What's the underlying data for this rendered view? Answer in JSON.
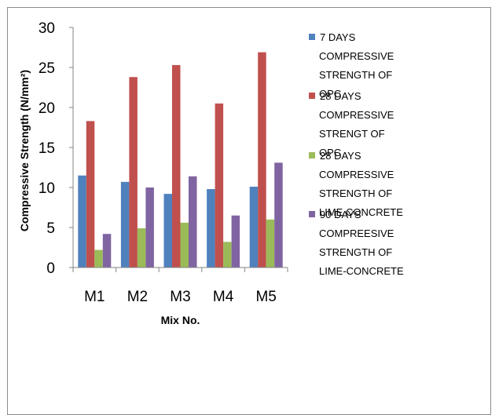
{
  "chart_data": {
    "type": "bar",
    "title": "",
    "xlabel": "Mix No.",
    "ylabel": "Compressive Strength (N/mm²)",
    "ylim": [
      0,
      30
    ],
    "yticks": [
      "0",
      "5",
      "10",
      "15",
      "20",
      "25",
      "30"
    ],
    "categories": [
      "M1",
      "M2",
      "M3",
      "M4",
      "M5"
    ],
    "grid": false,
    "legend_position": "right",
    "series": [
      {
        "name": "7 DAYS COMPRESSIVE STRENGTH OF OPC",
        "legend_lines": [
          "7 DAYS",
          "COMPRESSIVE",
          "STRENGTH OF",
          "OPC"
        ],
        "color": "#4f81bd",
        "values": [
          11.5,
          10.7,
          9.2,
          9.8,
          10.1
        ]
      },
      {
        "name": "28 DAYS COMPRESSIVE STRENGT OF OPC",
        "legend_lines": [
          "28 DAYS",
          "COMPRESSIVE",
          "STRENGT OF",
          "OPC"
        ],
        "color": "#c0504d",
        "values": [
          18.3,
          23.8,
          25.3,
          20.5,
          26.9
        ]
      },
      {
        "name": "28 DAYS COMPRESSIVE STRENGTH OF LIME CONCRETE",
        "legend_lines": [
          "28 DAYS",
          "COMPRESSIVE",
          "STRENGTH OF",
          "LIME CONCRETE"
        ],
        "color": "#9bbb59",
        "values": [
          2.2,
          4.9,
          5.6,
          3.2,
          6.0
        ]
      },
      {
        "name": "90 DAYS COMPREESIVE STRENGTH OF LIME-CONCRETE",
        "legend_lines": [
          "90 DAYS",
          "COMPREESIVE",
          "STRENGTH OF",
          "LIME-CONCRETE"
        ],
        "color": "#8064a2",
        "values": [
          4.2,
          10.0,
          11.4,
          6.5,
          13.1
        ]
      }
    ]
  }
}
